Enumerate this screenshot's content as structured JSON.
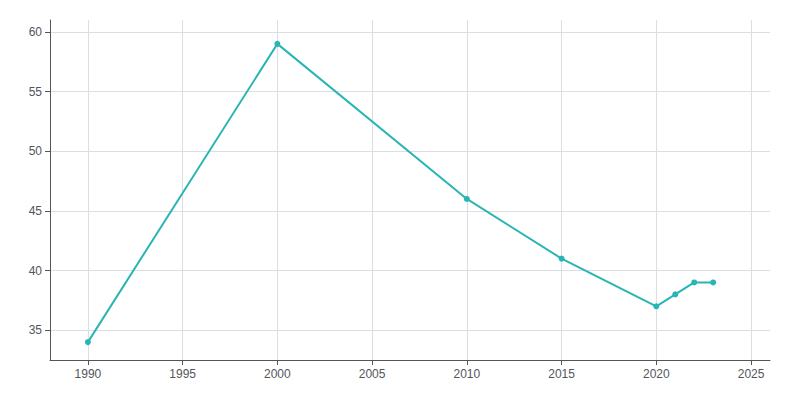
{
  "chart_data": {
    "type": "line",
    "x": [
      1990,
      2000,
      2010,
      2015,
      2020,
      2021,
      2022,
      2023
    ],
    "values": [
      34,
      59,
      46,
      41,
      37,
      38,
      39,
      39
    ],
    "color": "#2ab5b5",
    "marker": "circle",
    "xlim": [
      1988,
      2026
    ],
    "ylim": [
      32.5,
      61
    ],
    "xticks": [
      1990,
      1995,
      2000,
      2005,
      2010,
      2015,
      2020,
      2025
    ],
    "yticks": [
      35,
      40,
      45,
      50,
      55,
      60
    ],
    "grid": true
  }
}
